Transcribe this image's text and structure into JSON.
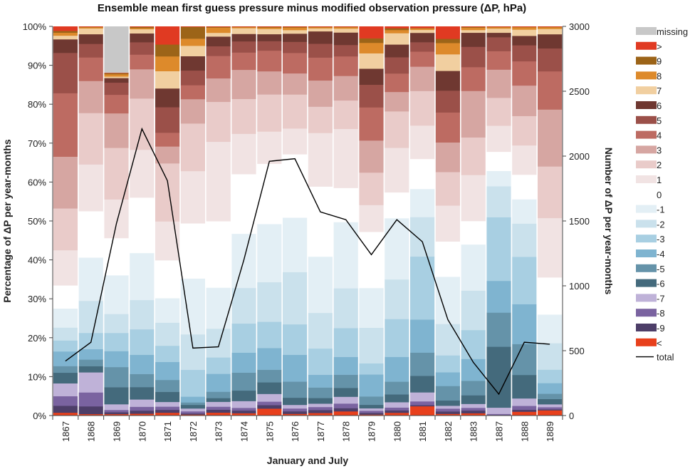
{
  "chart_data": {
    "type": "bar",
    "stacked": true,
    "title": "Ensemble mean first guess pressure minus modified observation pressure (ΔP, hPa)",
    "xlabel": "January and July",
    "ylabel": "Percentage of ΔP per year-months",
    "y2label": "Number of ΔP per year-months",
    "ylim": [
      0,
      100
    ],
    "y2lim": [
      0,
      3000
    ],
    "yticks": [
      "0%",
      "10%",
      "20%",
      "30%",
      "40%",
      "50%",
      "60%",
      "70%",
      "80%",
      "90%",
      "100%"
    ],
    "y2ticks": [
      "0",
      "500",
      "1000",
      "1500",
      "2000",
      "2500",
      "3000"
    ],
    "grid": false,
    "legend_position": "right",
    "categories": [
      "1867",
      "1868",
      "1869",
      "1870",
      "1871",
      "1872",
      "1873",
      "1874",
      "1875",
      "1876",
      "1877",
      "1878",
      "1879",
      "1880",
      "1881",
      "1882",
      "1883",
      "1887",
      "1888",
      "1889"
    ],
    "series": [
      {
        "name": "<",
        "color": "#e8401c",
        "values": [
          0.8,
          0.4,
          0.4,
          0.5,
          0.8,
          0.3,
          0.8,
          0.7,
          2.0,
          0.5,
          0.7,
          1.2,
          0.3,
          0.8,
          2.5,
          0.5,
          0.6,
          0.1,
          1.0,
          1.5
        ]
      },
      {
        "name": "-9",
        "color": "#4d3e68",
        "values": [
          1.9,
          2.0,
          0.5,
          0.8,
          0.8,
          0.3,
          0.8,
          0.8,
          1.0,
          0.7,
          0.8,
          0.9,
          0.5,
          0.7,
          0.3,
          0.7,
          0.7,
          0.1,
          0.5,
          0.3
        ]
      },
      {
        "name": "-8",
        "color": "#7a63a0",
        "values": [
          2.6,
          3.6,
          0.6,
          1.0,
          0.9,
          0.6,
          0.8,
          0.8,
          1.0,
          0.8,
          0.8,
          1.3,
          0.6,
          0.8,
          1.0,
          0.8,
          0.7,
          0.3,
          1.0,
          0.6
        ]
      },
      {
        "name": "-7",
        "color": "#bfb2d8",
        "values": [
          3.5,
          5.2,
          1.5,
          1.9,
          1.3,
          0.8,
          1.3,
          2.0,
          2.2,
          1.0,
          0.9,
          1.9,
          0.7,
          1.5,
          2.4,
          0.8,
          1.0,
          1.8,
          1.9,
          0.8
        ]
      },
      {
        "name": "-6",
        "color": "#446a7c",
        "values": [
          2.9,
          1.6,
          4.5,
          3.2,
          2.8,
          1.0,
          1.0,
          3.1,
          3.3,
          2.0,
          1.5,
          2.5,
          1.0,
          2.2,
          4.4,
          1.5,
          2.2,
          17.5,
          6.0,
          1.5
        ]
      },
      {
        "name": "-5",
        "color": "#6593a9",
        "values": [
          1.8,
          1.7,
          5.3,
          3.4,
          3.3,
          0.7,
          1.7,
          5.3,
          3.6,
          4.5,
          2.8,
          3.7,
          2.4,
          3.6,
          6.2,
          4.1,
          3.7,
          9.8,
          7.9,
          1.5
        ]
      },
      {
        "name": "-4",
        "color": "#7fb4d0",
        "values": [
          4.0,
          2.7,
          4.2,
          5.0,
          5.0,
          1.6,
          4.8,
          5.9,
          6.2,
          7.5,
          3.4,
          5.0,
          6.3,
          7.0,
          8.8,
          3.9,
          5.6,
          9.1,
          10.2,
          3.0
        ]
      },
      {
        "name": "-3",
        "color": "#a8cfe2",
        "values": [
          3.0,
          4.2,
          4.8,
          6.6,
          4.5,
          7.5,
          4.4,
          8.6,
          7.5,
          8.5,
          7.0,
          8.1,
          3.2,
          10.7,
          16.8,
          4.8,
          7.4,
          18.3,
          12.1,
          3.8
        ]
      },
      {
        "name": "-2",
        "color": "#cae1ec",
        "values": [
          3.5,
          8.3,
          5.0,
          7.6,
          6.4,
          9.9,
          7.7,
          10.5,
          11.3,
          14.6,
          9.5,
          11.2,
          10.2,
          11.2,
          10.5,
          8.9,
          10.1,
          8.9,
          8.5,
          7.5
        ]
      },
      {
        "name": "-1",
        "color": "#e3eff5",
        "values": [
          5.2,
          11.2,
          10.2,
          12.2,
          6.8,
          15.6,
          11.0,
          16.0,
          16.6,
          15.2,
          15.0,
          18.6,
          11.4,
          17.3,
          7.5,
          13.4,
          11.8,
          4.4,
          6.2,
          8.1
        ]
      },
      {
        "name": "0",
        "color": "#ffffff",
        "values": [
          6.3,
          12.0,
          9.8,
          14.4,
          10.5,
          15.4,
          17.8,
          17.6,
          17.2,
          17.7,
          18.7,
          9.6,
          16.1,
          7.3,
          8.0,
          10.0,
          6.0,
          5.5,
          6.3,
          10.5
        ]
      },
      {
        "name": "1",
        "color": "#f1e3e3",
        "values": [
          9.6,
          12.1,
          10.2,
          12.4,
          10.8,
          14.6,
          21.3,
          11.9,
          9.2,
          7.2,
          14.3,
          16.6,
          7.7,
          12.6,
          8.9,
          10.2,
          11.8,
          7.5,
          7.5,
          16.8
        ]
      },
      {
        "name": "2",
        "color": "#e9cbc9",
        "values": [
          11.4,
          13.3,
          13.6,
          13.3,
          16.1,
          13.3,
          10.7,
          10.3,
          10.6,
          9.5,
          7.0,
          8.0,
          9.3,
          10.3,
          9.2,
          9.5,
          9.6,
          8.0,
          7.5,
          14.6
        ]
      },
      {
        "name": "3",
        "color": "#d6a6a2",
        "values": [
          14.1,
          8.3,
          9.1,
          7.6,
          4.7,
          6.8,
          6.3,
          8.6,
          6.6,
          5.9,
          7.0,
          6.9,
          9.2,
          5.5,
          6.5,
          8.4,
          11.9,
          8.1,
          7.8,
          16.1
        ]
      },
      {
        "name": "4",
        "color": "#bd6b62",
        "values": [
          17.3,
          6.1,
          4.9,
          3.8,
          3.8,
          3.9,
          6.0,
          5.1,
          5.9,
          5.7,
          6.1,
          5.5,
          9.5,
          5.2,
          4.0,
          8.5,
          6.1,
          5.3,
          6.2,
          10.8
        ]
      },
      {
        "name": "5",
        "color": "#9b5049",
        "values": [
          11.0,
          3.5,
          3.2,
          3.2,
          7.1,
          4.1,
          2.6,
          3.3,
          2.7,
          3.1,
          3.7,
          3.2,
          6.5,
          4.6,
          2.5,
          6.2,
          5.2,
          4.0,
          4.1,
          6.5
        ]
      },
      {
        "name": "6",
        "color": "#6f3831",
        "values": [
          3.7,
          2.5,
          1.2,
          2.3,
          5.2,
          4.0,
          2.6,
          2.2,
          2.0,
          2.3,
          3.3,
          3.5,
          4.6,
          3.6,
          2.5,
          5.6,
          3.6,
          1.3,
          2.4,
          4.0
        ]
      },
      {
        "name": "7",
        "color": "#f1cfa0",
        "values": [
          1.0,
          1.5,
          0.4,
          1.1,
          4.8,
          2.9,
          1.0,
          1.7,
          1.5,
          1.0,
          0.8,
          1.1,
          4.4,
          3.2,
          0.8,
          4.7,
          0.7,
          1.2,
          1.6,
          1.5
        ]
      },
      {
        "name": "8",
        "color": "#dd8a2b",
        "values": [
          0.8,
          0.3,
          0.6,
          0.3,
          4.1,
          2.0,
          1.4,
          0.3,
          0.4,
          0.7,
          0.3,
          0.4,
          3.0,
          0.9,
          0.4,
          3.2,
          0.6,
          0.4,
          0.6,
          0.5
        ]
      },
      {
        "name": "9",
        "color": "#9c6418",
        "values": [
          0.5,
          0.1,
          0.3,
          0.3,
          3.3,
          3.3,
          0.2,
          0.1,
          0.2,
          0.2,
          0.1,
          0.1,
          1.3,
          0.5,
          0.1,
          1.2,
          0.2,
          0.1,
          0.1,
          0.1
        ]
      },
      {
        "name": ">",
        "color": "#e03a22",
        "values": [
          1.2,
          0.1,
          0.1,
          0.1,
          5.0,
          0.1,
          0.1,
          0.1,
          0.1,
          0.1,
          0.1,
          0.1,
          3.4,
          0.5,
          0.4,
          3.5,
          0.1,
          0.1,
          0.1,
          0.1
        ]
      },
      {
        "name": "missing",
        "color": "#c8c8c8",
        "values": [
          0,
          0,
          12.2,
          0,
          0,
          0,
          0,
          0,
          0,
          0,
          0,
          0,
          0,
          0,
          0,
          0,
          0,
          0,
          0,
          0
        ]
      }
    ],
    "total": {
      "name": "total",
      "axis": "secondary",
      "color": "#000000",
      "values": [
        420,
        565,
        1480,
        2210,
        1810,
        520,
        530,
        1200,
        1960,
        1980,
        1570,
        1510,
        1240,
        1510,
        1340,
        740,
        410,
        165,
        565,
        550
      ]
    }
  }
}
